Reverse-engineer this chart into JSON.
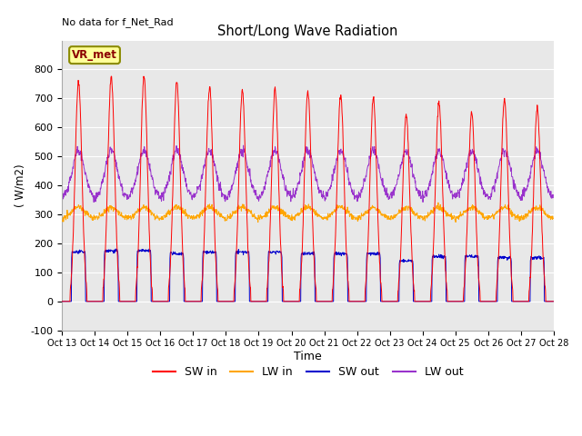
{
  "title": "Short/Long Wave Radiation",
  "ylabel": "( W/m2)",
  "xlabel": "Time",
  "top_left_text": "No data for f_Net_Rad",
  "legend_label": "VR_met",
  "ylim": [
    -100,
    900
  ],
  "yticks": [
    -100,
    0,
    100,
    200,
    300,
    400,
    500,
    600,
    700,
    800
  ],
  "xtick_labels": [
    "Oct 13",
    "Oct 14",
    "Oct 15",
    "Oct 16",
    "Oct 17",
    "Oct 18",
    "Oct 19",
    "Oct 20",
    "Oct 21",
    "Oct 22",
    "Oct 23",
    "Oct 24",
    "Oct 25",
    "Oct 26",
    "Oct 27",
    "Oct 28"
  ],
  "sw_in_color": "#ff0000",
  "lw_in_color": "#ffa500",
  "sw_out_color": "#0000cd",
  "lw_out_color": "#9932cc",
  "bg_color": "#e8e8e8",
  "grid_color": "#ffffff",
  "n_days": 15,
  "dt_hours": 0.25,
  "sw_in_peaks": [
    760,
    775,
    775,
    760,
    740,
    730,
    730,
    725,
    710,
    700,
    640,
    685,
    650,
    695,
    665
  ],
  "lw_in_base": 285,
  "lw_in_day_boost": 40,
  "sw_out_peaks": [
    170,
    175,
    175,
    165,
    170,
    170,
    170,
    165,
    165,
    165,
    140,
    155,
    155,
    150,
    150
  ],
  "lw_out_base": 355,
  "lw_out_day_peak": 520,
  "figsize": [
    6.4,
    4.8
  ],
  "dpi": 100
}
